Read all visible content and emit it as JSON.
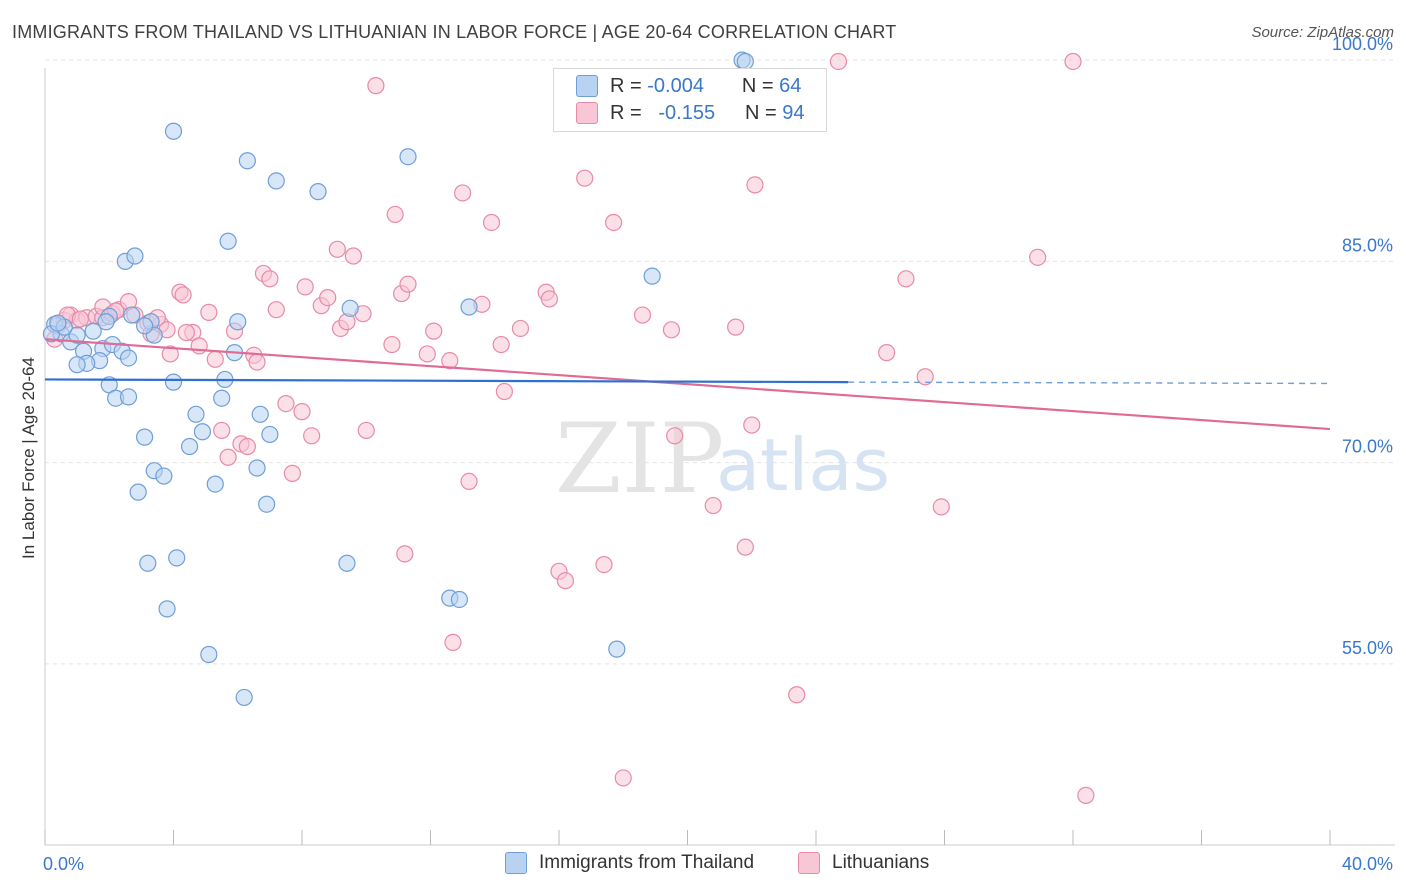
{
  "title": "IMMIGRANTS FROM THAILAND VS LITHUANIAN IN LABOR FORCE | AGE 20-64 CORRELATION CHART",
  "source": "Source: ZipAtlas.com",
  "watermark": {
    "zip": "ZIP",
    "atlas": "atlas"
  },
  "legend": {
    "r_label": "R =",
    "n_label": "N =",
    "series1": {
      "r": "-0.004",
      "n": "64"
    },
    "series2": {
      "r": "-0.155",
      "n": "94"
    }
  },
  "colors": {
    "blue_fill": "#b8d3f2",
    "blue_stroke": "#6f9fd8",
    "blue_line": "#2f6fcf",
    "pink_fill": "#f8c7d6",
    "pink_stroke": "#e88aa8",
    "pink_line": "#e06b96",
    "tick_label": "#3a78c9",
    "grid": "#e3e3e3"
  },
  "chart_data": {
    "type": "scatter",
    "title": "IMMIGRANTS FROM THAILAND VS LITHUANIAN IN LABOR FORCE | AGE 20-64 CORRELATION CHART",
    "ylabel": "In Labor Force | Age 20-64",
    "xlabel": "",
    "xlim": [
      0,
      40
    ],
    "ylim": [
      41.5,
      101.5
    ],
    "x_ticks": [
      0,
      4,
      8,
      12,
      16,
      20,
      24,
      28,
      32,
      36,
      40
    ],
    "x_tick_labels": [
      {
        "value": 0,
        "label": "0.0%"
      },
      {
        "value": 40,
        "label": "40.0%"
      }
    ],
    "y_gridlines": [
      55,
      70,
      85,
      100
    ],
    "y_tick_labels": [
      "100.0%",
      "85.0%",
      "70.0%",
      "55.0%"
    ],
    "y_tick_values": [
      100,
      85,
      70,
      55
    ],
    "series": [
      {
        "name": "Immigrants from Thailand",
        "color": "blue",
        "trend": {
          "x0": 0,
          "y0": 76.2,
          "x1": 25,
          "y1": 76.0,
          "dash_to": 40,
          "dash_y": 75.9
        },
        "points": [
          [
            0.3,
            80.3
          ],
          [
            0.5,
            79.6
          ],
          [
            0.8,
            79.0
          ],
          [
            1.0,
            79.5
          ],
          [
            1.2,
            78.3
          ],
          [
            1.5,
            79.8
          ],
          [
            1.8,
            78.5
          ],
          [
            2.1,
            78.8
          ],
          [
            2.4,
            78.3
          ],
          [
            1.7,
            77.6
          ],
          [
            1.3,
            77.4
          ],
          [
            1.0,
            77.3
          ],
          [
            2.0,
            80.9
          ],
          [
            2.7,
            81.0
          ],
          [
            3.3,
            80.5
          ],
          [
            3.4,
            79.5
          ],
          [
            2.5,
            85.0
          ],
          [
            2.8,
            85.4
          ],
          [
            4.0,
            94.7
          ],
          [
            6.3,
            92.5
          ],
          [
            7.2,
            91.0
          ],
          [
            8.5,
            90.2
          ],
          [
            11.3,
            92.8
          ],
          [
            5.7,
            86.5
          ],
          [
            6.0,
            80.5
          ],
          [
            5.9,
            78.2
          ],
          [
            5.6,
            76.2
          ],
          [
            4.0,
            76.0
          ],
          [
            2.0,
            75.8
          ],
          [
            2.2,
            74.8
          ],
          [
            2.6,
            74.9
          ],
          [
            5.5,
            74.8
          ],
          [
            4.7,
            73.6
          ],
          [
            6.7,
            73.6
          ],
          [
            7.0,
            72.1
          ],
          [
            4.9,
            72.3
          ],
          [
            3.1,
            71.9
          ],
          [
            4.5,
            71.2
          ],
          [
            3.4,
            69.4
          ],
          [
            6.6,
            69.6
          ],
          [
            3.7,
            69.0
          ],
          [
            5.3,
            68.4
          ],
          [
            2.9,
            67.8
          ],
          [
            6.9,
            66.9
          ],
          [
            4.1,
            62.9
          ],
          [
            3.2,
            62.5
          ],
          [
            9.4,
            62.5
          ],
          [
            3.8,
            59.1
          ],
          [
            12.6,
            59.9
          ],
          [
            12.9,
            59.8
          ],
          [
            17.8,
            56.1
          ],
          [
            5.1,
            55.7
          ],
          [
            6.2,
            52.5
          ],
          [
            9.5,
            81.5
          ],
          [
            13.2,
            81.6
          ],
          [
            18.9,
            83.9
          ],
          [
            21.7,
            100.0
          ],
          [
            21.8,
            99.9
          ],
          [
            0.2,
            79.6
          ],
          [
            0.6,
            80.1
          ],
          [
            1.9,
            80.5
          ],
          [
            3.1,
            80.2
          ],
          [
            2.6,
            77.8
          ],
          [
            0.4,
            80.4
          ]
        ]
      },
      {
        "name": "Lithuanians",
        "color": "pink",
        "trend": {
          "x0": 0,
          "y0": 79.2,
          "x1": 40,
          "y1": 72.5
        },
        "points": [
          [
            0.3,
            79.2
          ],
          [
            0.6,
            80.6
          ],
          [
            0.8,
            81.0
          ],
          [
            1.0,
            80.6
          ],
          [
            1.3,
            80.8
          ],
          [
            1.6,
            80.9
          ],
          [
            1.8,
            80.8
          ],
          [
            1.8,
            81.6
          ],
          [
            2.1,
            81.1
          ],
          [
            2.3,
            81.4
          ],
          [
            2.6,
            82.0
          ],
          [
            2.8,
            81.0
          ],
          [
            3.2,
            80.4
          ],
          [
            3.3,
            79.6
          ],
          [
            3.6,
            80.3
          ],
          [
            3.8,
            79.9
          ],
          [
            3.9,
            78.1
          ],
          [
            4.2,
            82.7
          ],
          [
            4.3,
            82.5
          ],
          [
            4.6,
            79.7
          ],
          [
            4.8,
            78.7
          ],
          [
            5.1,
            81.2
          ],
          [
            5.3,
            77.7
          ],
          [
            5.7,
            70.4
          ],
          [
            5.9,
            79.8
          ],
          [
            6.1,
            71.4
          ],
          [
            6.3,
            71.2
          ],
          [
            6.5,
            78.0
          ],
          [
            6.6,
            77.5
          ],
          [
            6.8,
            84.1
          ],
          [
            7.0,
            83.7
          ],
          [
            7.2,
            81.4
          ],
          [
            7.5,
            74.4
          ],
          [
            7.7,
            69.2
          ],
          [
            8.0,
            73.8
          ],
          [
            8.1,
            83.1
          ],
          [
            8.3,
            72.0
          ],
          [
            8.6,
            81.7
          ],
          [
            8.8,
            82.3
          ],
          [
            9.1,
            85.9
          ],
          [
            9.2,
            80.0
          ],
          [
            9.4,
            80.5
          ],
          [
            9.6,
            85.4
          ],
          [
            9.9,
            81.1
          ],
          [
            10.0,
            72.4
          ],
          [
            10.3,
            98.1
          ],
          [
            10.8,
            78.8
          ],
          [
            10.9,
            88.5
          ],
          [
            11.1,
            82.6
          ],
          [
            11.3,
            83.3
          ],
          [
            11.2,
            63.2
          ],
          [
            11.9,
            78.1
          ],
          [
            12.1,
            79.8
          ],
          [
            12.6,
            77.6
          ],
          [
            12.7,
            56.6
          ],
          [
            13.0,
            90.1
          ],
          [
            13.2,
            68.6
          ],
          [
            13.6,
            81.8
          ],
          [
            13.9,
            87.9
          ],
          [
            14.2,
            78.8
          ],
          [
            14.3,
            75.3
          ],
          [
            14.8,
            80.0
          ],
          [
            15.6,
            82.7
          ],
          [
            15.7,
            82.2
          ],
          [
            16.0,
            61.9
          ],
          [
            16.2,
            61.2
          ],
          [
            16.8,
            91.2
          ],
          [
            17.4,
            62.4
          ],
          [
            17.7,
            87.9
          ],
          [
            18.0,
            46.5
          ],
          [
            18.6,
            81.0
          ],
          [
            19.5,
            79.9
          ],
          [
            19.6,
            72.0
          ],
          [
            20.8,
            66.8
          ],
          [
            21.5,
            80.1
          ],
          [
            21.8,
            63.7
          ],
          [
            22.0,
            72.8
          ],
          [
            22.1,
            90.7
          ],
          [
            23.4,
            52.7
          ],
          [
            24.7,
            99.9
          ],
          [
            26.2,
            78.2
          ],
          [
            26.8,
            83.7
          ],
          [
            27.4,
            76.4
          ],
          [
            27.9,
            66.7
          ],
          [
            30.9,
            85.3
          ],
          [
            32.0,
            99.9
          ],
          [
            32.4,
            45.2
          ],
          [
            0.4,
            80.2
          ],
          [
            0.7,
            81.0
          ],
          [
            1.1,
            80.7
          ],
          [
            2.2,
            81.3
          ],
          [
            3.5,
            80.8
          ],
          [
            4.4,
            79.7
          ],
          [
            5.5,
            72.4
          ]
        ]
      }
    ]
  },
  "bottom_legend": {
    "series1": "Immigrants from Thailand",
    "series2": "Lithuanians"
  }
}
